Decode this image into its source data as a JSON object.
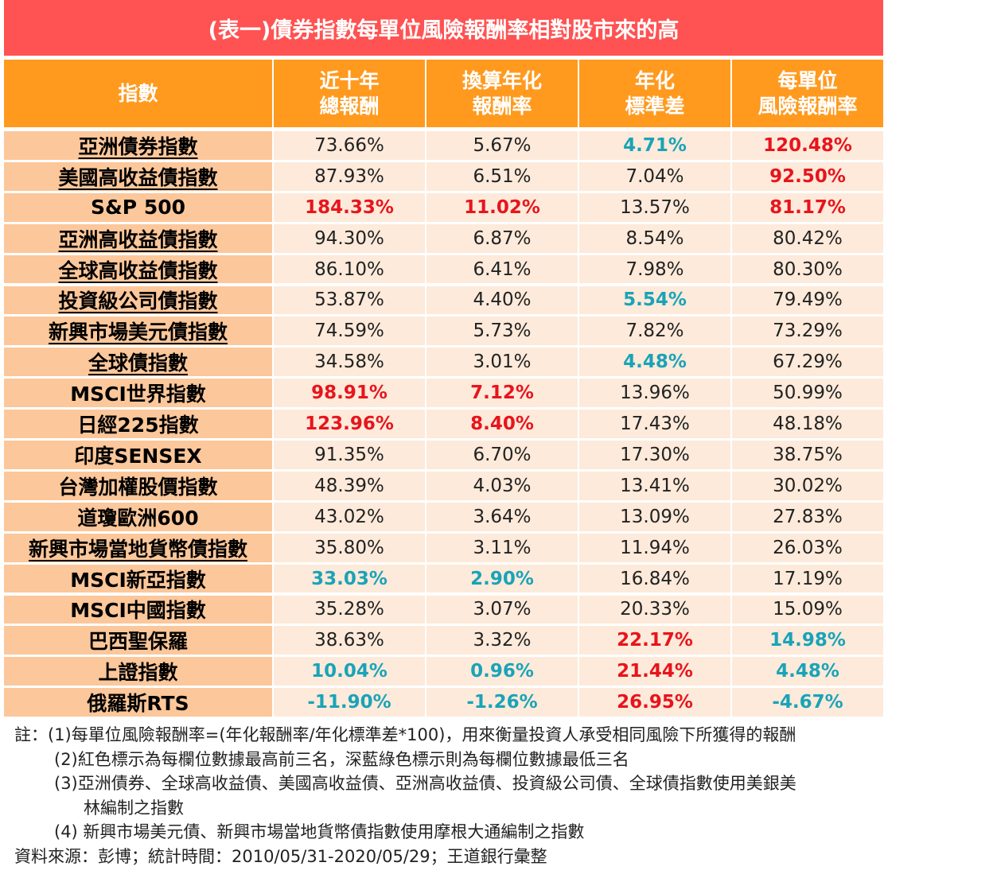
{
  "title": "(表一)債券指數每單位風險報酬率相對股市來的高",
  "table": {
    "header": [
      [
        "指數"
      ],
      [
        "近十年",
        "總報酬"
      ],
      [
        "換算年化",
        "報酬率"
      ],
      [
        "年化",
        "標準差"
      ],
      [
        "每單位",
        "風險報酬率"
      ]
    ],
    "rows": [
      {
        "name": "亞洲債券指數",
        "underline": true,
        "cells": [
          {
            "text": "73.66%"
          },
          {
            "text": "5.67%"
          },
          {
            "text": "4.71%",
            "color": "#1aa3b8"
          },
          {
            "text": "120.48%",
            "color": "#e8141c"
          }
        ]
      },
      {
        "name": "美國高收益債指數",
        "underline": true,
        "cells": [
          {
            "text": "87.93%"
          },
          {
            "text": "6.51%"
          },
          {
            "text": "7.04%"
          },
          {
            "text": "92.50%",
            "color": "#e8141c"
          }
        ]
      },
      {
        "name": "S&P 500",
        "underline": false,
        "cells": [
          {
            "text": "184.33%",
            "color": "#e8141c"
          },
          {
            "text": "11.02%",
            "color": "#e8141c"
          },
          {
            "text": "13.57%"
          },
          {
            "text": "81.17%",
            "color": "#e8141c"
          }
        ]
      },
      {
        "name": "亞洲高收益債指數",
        "underline": true,
        "cells": [
          {
            "text": "94.30%"
          },
          {
            "text": "6.87%"
          },
          {
            "text": "8.54%"
          },
          {
            "text": "80.42%"
          }
        ]
      },
      {
        "name": "全球高收益債指數",
        "underline": true,
        "cells": [
          {
            "text": "86.10%"
          },
          {
            "text": "6.41%"
          },
          {
            "text": "7.98%"
          },
          {
            "text": "80.30%"
          }
        ]
      },
      {
        "name": "投資級公司債指數",
        "underline": true,
        "cells": [
          {
            "text": "53.87%"
          },
          {
            "text": "4.40%"
          },
          {
            "text": "5.54%",
            "color": "#1aa3b8"
          },
          {
            "text": "79.49%"
          }
        ]
      },
      {
        "name": "新興市場美元債指數",
        "underline": true,
        "cells": [
          {
            "text": "74.59%"
          },
          {
            "text": "5.73%"
          },
          {
            "text": "7.82%"
          },
          {
            "text": "73.29%"
          }
        ]
      },
      {
        "name": "全球債指數",
        "underline": true,
        "cells": [
          {
            "text": "34.58%"
          },
          {
            "text": "3.01%"
          },
          {
            "text": "4.48%",
            "color": "#1aa3b8"
          },
          {
            "text": "67.29%"
          }
        ]
      },
      {
        "name": "MSCI世界指數",
        "underline": false,
        "cells": [
          {
            "text": "98.91%",
            "color": "#e8141c"
          },
          {
            "text": "7.12%",
            "color": "#e8141c"
          },
          {
            "text": "13.96%"
          },
          {
            "text": "50.99%"
          }
        ]
      },
      {
        "name": "日經225指數",
        "underline": false,
        "cells": [
          {
            "text": "123.96%",
            "color": "#e8141c"
          },
          {
            "text": "8.40%",
            "color": "#e8141c"
          },
          {
            "text": "17.43%"
          },
          {
            "text": "48.18%"
          }
        ]
      },
      {
        "name": "印度SENSEX",
        "underline": false,
        "cells": [
          {
            "text": "91.35%"
          },
          {
            "text": "6.70%"
          },
          {
            "text": "17.30%"
          },
          {
            "text": "38.75%"
          }
        ]
      },
      {
        "name": "台灣加權股價指數",
        "underline": false,
        "cells": [
          {
            "text": "48.39%"
          },
          {
            "text": "4.03%"
          },
          {
            "text": "13.41%"
          },
          {
            "text": "30.02%"
          }
        ]
      },
      {
        "name": "道瓊歐洲600",
        "underline": false,
        "cells": [
          {
            "text": "43.02%"
          },
          {
            "text": "3.64%"
          },
          {
            "text": "13.09%"
          },
          {
            "text": "27.83%"
          }
        ]
      },
      {
        "name": "新興市場當地貨幣債指數",
        "underline": true,
        "cells": [
          {
            "text": "35.80%"
          },
          {
            "text": "3.11%"
          },
          {
            "text": "11.94%"
          },
          {
            "text": "26.03%"
          }
        ]
      },
      {
        "name": "MSCI新亞指數",
        "underline": false,
        "cells": [
          {
            "text": "33.03%",
            "color": "#1aa3b8"
          },
          {
            "text": "2.90%",
            "color": "#1aa3b8"
          },
          {
            "text": "16.84%"
          },
          {
            "text": "17.19%"
          }
        ]
      },
      {
        "name": "MSCI中國指數",
        "underline": false,
        "cells": [
          {
            "text": "35.28%"
          },
          {
            "text": "3.07%"
          },
          {
            "text": "20.33%"
          },
          {
            "text": "15.09%"
          }
        ]
      },
      {
        "name": "巴西聖保羅",
        "underline": false,
        "cells": [
          {
            "text": "38.63%"
          },
          {
            "text": "3.32%"
          },
          {
            "text": "22.17%",
            "color": "#e8141c"
          },
          {
            "text": "14.98%",
            "color": "#1aa3b8"
          }
        ]
      },
      {
        "name": "上證指數",
        "underline": false,
        "cells": [
          {
            "text": "10.04%",
            "color": "#1aa3b8"
          },
          {
            "text": "0.96%",
            "color": "#1aa3b8"
          },
          {
            "text": "21.44%",
            "color": "#e8141c"
          },
          {
            "text": "4.48%",
            "color": "#1aa3b8"
          }
        ]
      },
      {
        "name": "俄羅斯RTS",
        "underline": false,
        "cells": [
          {
            "text": "-11.90%",
            "color": "#1aa3b8"
          },
          {
            "text": "-1.26%",
            "color": "#1aa3b8"
          },
          {
            "text": "26.95%",
            "color": "#e8141c"
          },
          {
            "text": "-4.67%",
            "color": "#1aa3b8"
          }
        ]
      }
    ]
  },
  "notes": [
    "註：(1)每單位風險報酬率=(年化報酬率/年化標準差*100)，用來衡量投資人承受相同風險下所獲得的報酬",
    "(2)紅色標示為每欄位數據最高前三名，深藍綠色標示則為每欄位數據最低三名",
    "(3)亞洲債券、全球高收益債、美國高收益債、亞洲高收益債、投資級公司債、全球債指數使用美銀美",
    "林編制之指數",
    "(4) 新興市場美元債、新興市場當地貨幣債指數使用摩根大通編制之指數",
    "資料來源：彭博；統計時間：2010/05/31-2020/05/29；王道銀行彙整"
  ]
}
